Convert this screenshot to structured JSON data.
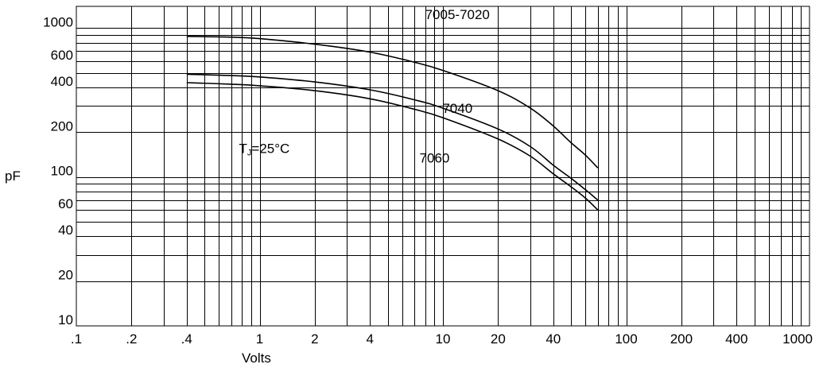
{
  "chart_data": {
    "type": "line",
    "title": "",
    "xlabel": "Volts",
    "ylabel": "pF",
    "x_scale": "log",
    "y_scale": "log",
    "xlim": [
      0.1,
      1000
    ],
    "ylim": [
      10,
      1400
    ],
    "grid": true,
    "legend": "none",
    "x_ticks": [
      {
        "value": 0.1,
        "label": ".1"
      },
      {
        "value": 0.2,
        "label": ".2"
      },
      {
        "value": 0.4,
        "label": ".4"
      },
      {
        "value": 1,
        "label": "1"
      },
      {
        "value": 2,
        "label": "2"
      },
      {
        "value": 4,
        "label": "4"
      },
      {
        "value": 10,
        "label": "10"
      },
      {
        "value": 20,
        "label": "20"
      },
      {
        "value": 40,
        "label": "40"
      },
      {
        "value": 100,
        "label": "100"
      },
      {
        "value": 200,
        "label": "200"
      },
      {
        "value": 400,
        "label": "400"
      },
      {
        "value": 1000,
        "label": "1000"
      }
    ],
    "y_ticks": [
      {
        "value": 10,
        "label": "10"
      },
      {
        "value": 20,
        "label": "20"
      },
      {
        "value": 40,
        "label": "40"
      },
      {
        "value": 60,
        "label": "60"
      },
      {
        "value": 100,
        "label": "100"
      },
      {
        "value": 200,
        "label": "200"
      },
      {
        "value": 400,
        "label": "400"
      },
      {
        "value": 600,
        "label": "600"
      },
      {
        "value": 1000,
        "label": "1000"
      }
    ],
    "x_grid_values": [
      0.2,
      0.3,
      0.4,
      0.5,
      0.6,
      0.7,
      0.8,
      0.9,
      1,
      2,
      3,
      4,
      5,
      6,
      7,
      8,
      9,
      10,
      20,
      30,
      40,
      50,
      60,
      70,
      80,
      90,
      100,
      200,
      300,
      400,
      500,
      600,
      700,
      800,
      900
    ],
    "y_grid_values": [
      20,
      30,
      40,
      50,
      60,
      70,
      80,
      90,
      100,
      200,
      300,
      400,
      500,
      600,
      700,
      800,
      900,
      1000
    ],
    "annotation": {
      "main": "T",
      "sub": "J",
      "rest": "=25°C",
      "x": 1,
      "y": 190
    },
    "series": [
      {
        "name": "7005-7020",
        "label_at": {
          "x": 12,
          "y": 1150
        },
        "x": [
          0.4,
          0.7,
          1,
          2,
          4,
          7,
          10,
          20,
          30,
          40,
          50,
          60,
          70
        ],
        "y": [
          880,
          870,
          850,
          780,
          690,
          590,
          520,
          380,
          290,
          220,
          170,
          140,
          115
        ]
      },
      {
        "name": "7040",
        "label_at": {
          "x": 12,
          "y": 270
        },
        "x": [
          0.4,
          0.7,
          1,
          2,
          4,
          7,
          10,
          20,
          30,
          40,
          50,
          60,
          70
        ],
        "y": [
          490,
          480,
          470,
          435,
          385,
          330,
          290,
          210,
          160,
          120,
          98,
          82,
          70
        ]
      },
      {
        "name": "7060",
        "label_at": {
          "x": 9,
          "y": 125
        },
        "x": [
          0.4,
          0.7,
          1,
          2,
          4,
          7,
          10,
          20,
          30,
          40,
          50,
          60,
          70
        ],
        "y": [
          430,
          420,
          410,
          380,
          335,
          285,
          250,
          180,
          138,
          105,
          86,
          72,
          60
        ]
      }
    ]
  }
}
